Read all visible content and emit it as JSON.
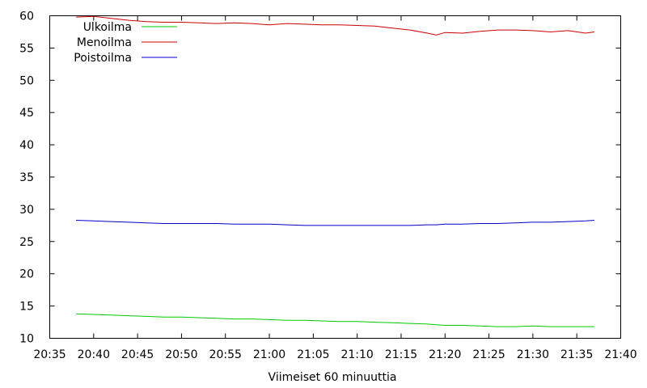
{
  "chart_data": {
    "type": "line",
    "xlabel": "Viimeiset 60 minuuttia",
    "ylabel": "",
    "ylim": [
      10,
      60
    ],
    "yticks": [
      10,
      15,
      20,
      25,
      30,
      35,
      40,
      45,
      50,
      55,
      60
    ],
    "xlim": [
      "20:35",
      "21:40"
    ],
    "xticks": [
      "20:35",
      "20:40",
      "20:45",
      "20:50",
      "20:55",
      "21:00",
      "21:05",
      "21:10",
      "21:15",
      "21:20",
      "21:25",
      "21:30",
      "21:35",
      "21:40"
    ],
    "grid": false,
    "legend_position": "top-left",
    "x": [
      "20:38",
      "20:40",
      "20:42",
      "20:44",
      "20:46",
      "20:48",
      "20:50",
      "20:52",
      "20:54",
      "20:56",
      "20:58",
      "21:00",
      "21:02",
      "21:04",
      "21:06",
      "21:08",
      "21:10",
      "21:12",
      "21:14",
      "21:16",
      "21:18",
      "21:19",
      "21:20",
      "21:22",
      "21:24",
      "21:26",
      "21:28",
      "21:30",
      "21:32",
      "21:34",
      "21:36",
      "21:37"
    ],
    "series": [
      {
        "name": "Ulkoilma",
        "color": "#00cc00",
        "values": [
          13.8,
          13.7,
          13.6,
          13.5,
          13.4,
          13.3,
          13.3,
          13.2,
          13.1,
          13.0,
          13.0,
          12.9,
          12.8,
          12.8,
          12.7,
          12.6,
          12.6,
          12.5,
          12.4,
          12.3,
          12.2,
          12.1,
          12.0,
          12.0,
          11.9,
          11.8,
          11.8,
          11.9,
          11.8,
          11.8,
          11.8,
          11.8
        ]
      },
      {
        "name": "Menoilma",
        "color": "#cc0000",
        "values": [
          59.8,
          59.9,
          59.6,
          59.3,
          59.1,
          59.0,
          59.0,
          58.9,
          58.8,
          58.9,
          58.8,
          58.6,
          58.8,
          58.7,
          58.6,
          58.6,
          58.5,
          58.4,
          58.1,
          57.8,
          57.3,
          57.0,
          57.4,
          57.3,
          57.6,
          57.8,
          57.8,
          57.7,
          57.5,
          57.7,
          57.3,
          57.5
        ]
      },
      {
        "name": "Poistoilma",
        "color": "#0000cc",
        "values": [
          28.3,
          28.2,
          28.1,
          28.0,
          27.9,
          27.8,
          27.8,
          27.8,
          27.8,
          27.7,
          27.7,
          27.7,
          27.6,
          27.5,
          27.5,
          27.5,
          27.5,
          27.5,
          27.5,
          27.5,
          27.6,
          27.6,
          27.7,
          27.7,
          27.8,
          27.8,
          27.9,
          28.0,
          28.0,
          28.1,
          28.2,
          28.3
        ]
      }
    ]
  }
}
